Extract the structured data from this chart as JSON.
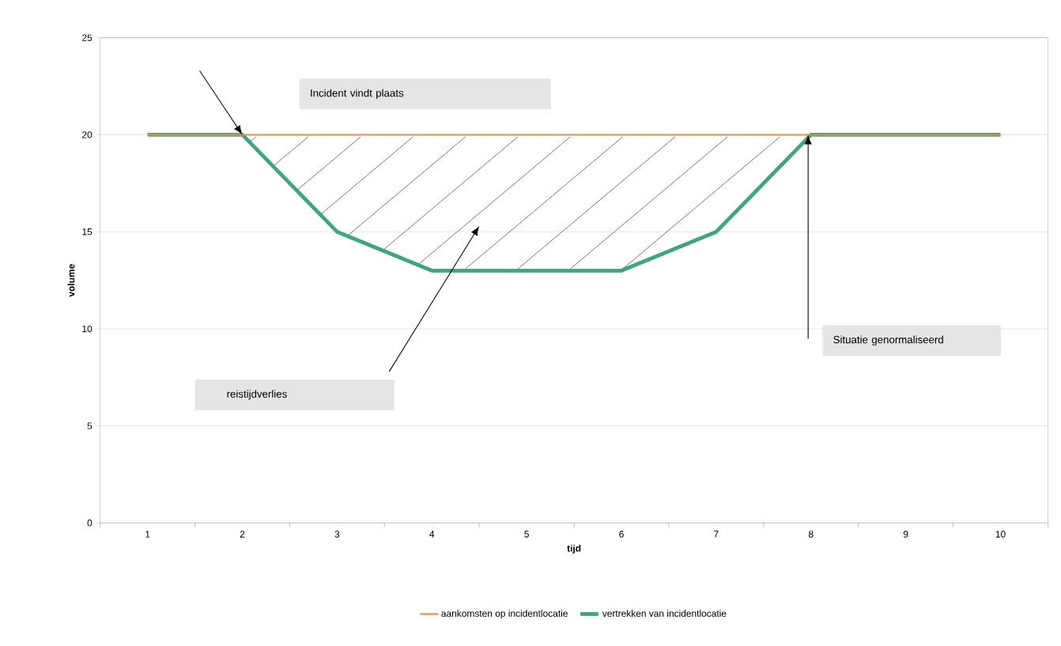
{
  "chart_data": {
    "type": "line",
    "xlabel": "tijd",
    "ylabel": "volume",
    "categories": [
      "1",
      "2",
      "3",
      "4",
      "5",
      "6",
      "7",
      "8",
      "9",
      "10"
    ],
    "series": [
      {
        "name": "aankomsten op incidentlocatie",
        "color": "#f08a3c",
        "values": [
          20,
          20,
          20,
          20,
          20,
          20,
          20,
          20,
          20,
          20
        ]
      },
      {
        "name": "vertrekken van incidentlocatie",
        "color": "#3ea57c",
        "values": [
          20,
          20,
          15,
          13,
          13,
          13,
          15,
          20,
          20,
          20
        ]
      }
    ],
    "ylim": [
      0,
      25
    ],
    "yticks": [
      0,
      5,
      10,
      15,
      20,
      25
    ],
    "grid": "y",
    "legend": "bottom",
    "marker": "none",
    "line_style": "solid",
    "annotations": [
      "Incident vindt plaats",
      "reistijdverlies",
      "Situatie genormaliseerd"
    ]
  }
}
